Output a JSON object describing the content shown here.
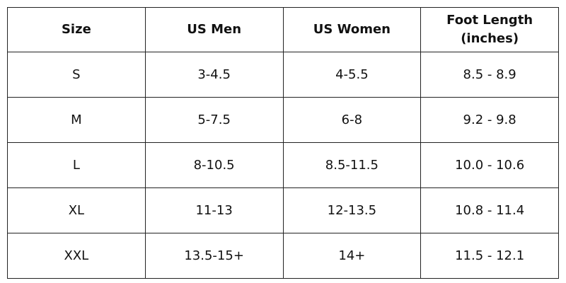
{
  "table": {
    "header": [
      "Size",
      "US Men",
      "US Women",
      "Foot Length (inches)"
    ],
    "rows": [
      [
        "S",
        "3-4.5",
        "4-5.5",
        "8.5 - 8.9"
      ],
      [
        "M",
        "5-7.5",
        "6-8",
        "9.2 - 9.8"
      ],
      [
        "L",
        "8-10.5",
        "8.5-11.5",
        "10.0 - 10.6"
      ],
      [
        "XL",
        "11-13",
        "12-13.5",
        "10.8 - 11.4"
      ],
      [
        "XXL",
        "13.5-15+",
        "14+",
        "11.5 - 12.1"
      ]
    ]
  }
}
